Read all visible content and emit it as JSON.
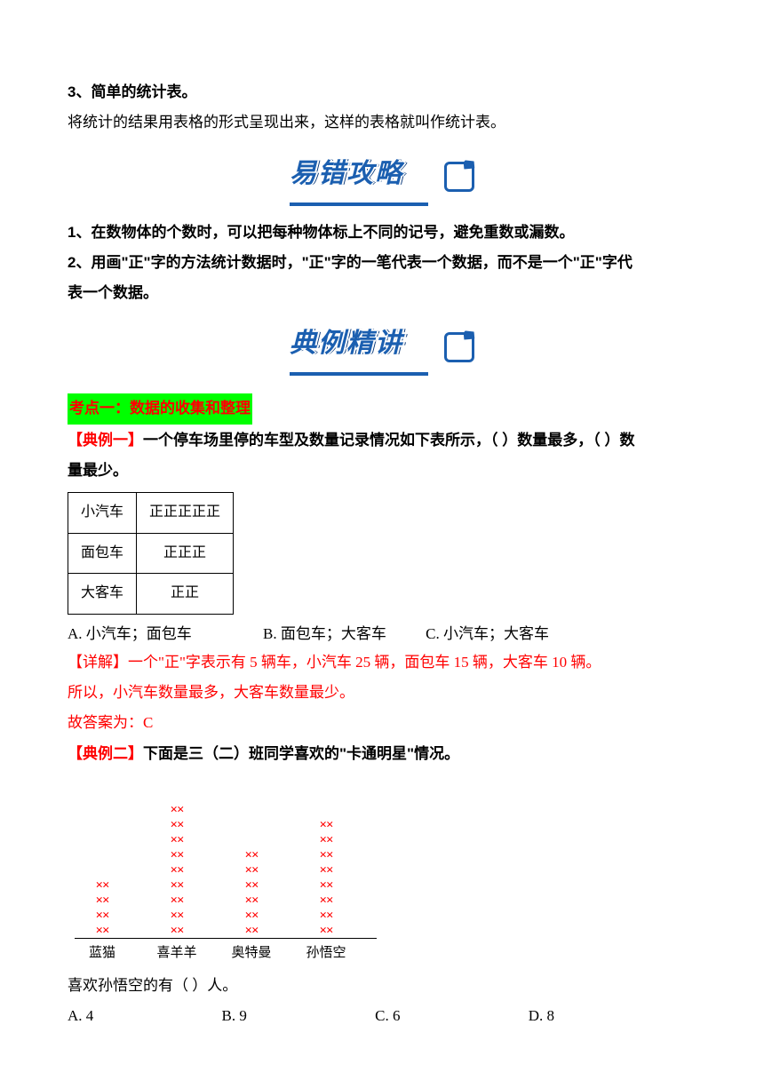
{
  "intro": {
    "line3_num": "3",
    "line3_title": "、简单的统计表。",
    "line3_body": "将统计的结果用表格的形式呈现出来，这样的表格就叫作统计表。"
  },
  "banner1": "易错攻略",
  "tips": {
    "t1_num": "1",
    "t1_body": "、在数物体的个数时，可以把每种物体标上不同的记号，避免重数或漏数。",
    "t2_num": "2",
    "t2_body_a": "、用画\"正\"字的方法统计数据时，\"正\"字的一笔代表一个数据，而不是一个\"正\"字代",
    "t2_body_b": "表一个数据。"
  },
  "banner2": "典例精讲",
  "topic": "考点一：数据的收集和整理",
  "ex1": {
    "tag": "【典例一】",
    "body_a": "一个停车场里停的车型及数量记录情况如下表所示，（    ）数量最多，（    ）数",
    "body_b": "量最少。",
    "table": {
      "rows": [
        [
          "小汽车",
          "正正正正正"
        ],
        [
          "面包车",
          "正正正"
        ],
        [
          "大客车",
          "正正"
        ]
      ]
    },
    "options": {
      "a": "A. 小汽车；面包车",
      "b": "B. 面包车；大客车",
      "c": "C. 小汽车；大客车",
      "gap_ab": 76,
      "gap_bc": 40
    },
    "explain_tag": "【详解】",
    "explain_a": "一个\"正\"字表示有 5 辆车，小汽车 25 辆，面包车 15 辆，大客车 10 辆。",
    "explain_b": "所以，小汽车数量最多，大客车数量最少。",
    "answer": "故答案为：C"
  },
  "ex2": {
    "tag": "【典例二】",
    "body": "下面是三（二）班同学喜欢的\"卡通明星\"情况。",
    "chart": {
      "type": "tally-column",
      "categories": [
        "蓝猫",
        "喜羊羊",
        "奥特曼",
        "孙悟空"
      ],
      "values": [
        4,
        9,
        6,
        8
      ],
      "mark_color": "#ff0000",
      "axis_color": "#000000",
      "label_fontsize": 15
    },
    "question": "喜欢孙悟空的有（    ）人。",
    "options": {
      "a": "A. 4",
      "b": "B. 9",
      "c": "C. 6",
      "d": "D. 8",
      "gap": 140
    }
  }
}
